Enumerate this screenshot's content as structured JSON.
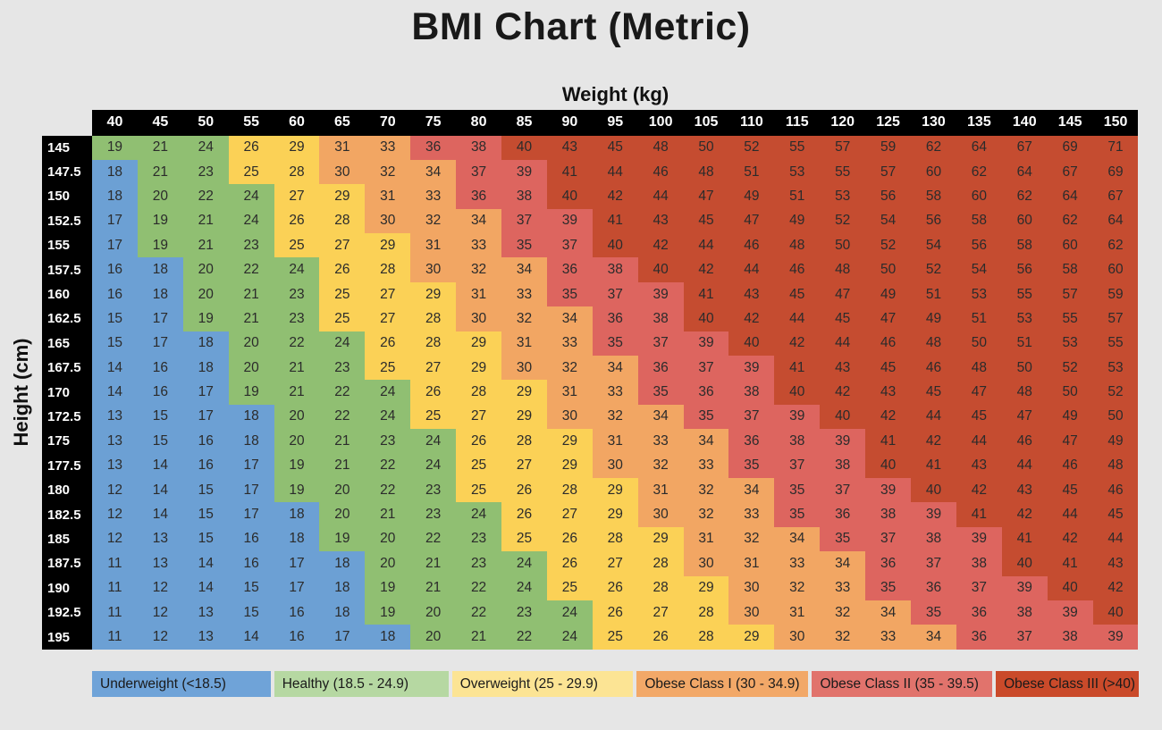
{
  "title": "BMI Chart (Metric)",
  "axes": {
    "x_label": "Weight (kg)",
    "y_label": "Height (cm)"
  },
  "colors": {
    "page_bg": "#e6e6e6",
    "header_bg": "#000000",
    "header_text": "#ffffff",
    "cell_text": "#2b2b2b",
    "title_text": "#191919",
    "axis_text": "#111111"
  },
  "chart_data": {
    "type": "heatmap",
    "title": "BMI Chart (Metric)",
    "xlabel": "Weight (kg)",
    "ylabel": "Height (cm)",
    "weights_kg": [
      40,
      45,
      50,
      55,
      60,
      65,
      70,
      75,
      80,
      85,
      90,
      95,
      100,
      105,
      110,
      115,
      120,
      125,
      130,
      135,
      140,
      145,
      150
    ],
    "heights_cm": [
      "145",
      "147.5",
      "150",
      "152.5",
      "155",
      "157.5",
      "160",
      "162.5",
      "165",
      "167.5",
      "170",
      "172.5",
      "175",
      "177.5",
      "180",
      "182.5",
      "185",
      "187.5",
      "190",
      "192.5",
      "195"
    ],
    "bmi_values": [
      [
        19,
        21,
        24,
        26,
        29,
        31,
        33,
        36,
        38,
        40,
        43,
        45,
        48,
        50,
        52,
        55,
        57,
        59,
        62,
        64,
        67,
        69,
        71
      ],
      [
        18,
        21,
        23,
        25,
        28,
        30,
        32,
        34,
        37,
        39,
        41,
        44,
        46,
        48,
        51,
        53,
        55,
        57,
        60,
        62,
        64,
        67,
        69
      ],
      [
        18,
        20,
        22,
        24,
        27,
        29,
        31,
        33,
        36,
        38,
        40,
        42,
        44,
        47,
        49,
        51,
        53,
        56,
        58,
        60,
        62,
        64,
        67
      ],
      [
        17,
        19,
        21,
        24,
        26,
        28,
        30,
        32,
        34,
        37,
        39,
        41,
        43,
        45,
        47,
        49,
        52,
        54,
        56,
        58,
        60,
        62,
        64
      ],
      [
        17,
        19,
        21,
        23,
        25,
        27,
        29,
        31,
        33,
        35,
        37,
        40,
        42,
        44,
        46,
        48,
        50,
        52,
        54,
        56,
        58,
        60,
        62
      ],
      [
        16,
        18,
        20,
        22,
        24,
        26,
        28,
        30,
        32,
        34,
        36,
        38,
        40,
        42,
        44,
        46,
        48,
        50,
        52,
        54,
        56,
        58,
        60
      ],
      [
        16,
        18,
        20,
        21,
        23,
        25,
        27,
        29,
        31,
        33,
        35,
        37,
        39,
        41,
        43,
        45,
        47,
        49,
        51,
        53,
        55,
        57,
        59
      ],
      [
        15,
        17,
        19,
        21,
        23,
        25,
        27,
        28,
        30,
        32,
        34,
        36,
        38,
        40,
        42,
        44,
        45,
        47,
        49,
        51,
        53,
        55,
        57
      ],
      [
        15,
        17,
        18,
        20,
        22,
        24,
        26,
        28,
        29,
        31,
        33,
        35,
        37,
        39,
        40,
        42,
        44,
        46,
        48,
        50,
        51,
        53,
        55
      ],
      [
        14,
        16,
        18,
        20,
        21,
        23,
        25,
        27,
        29,
        30,
        32,
        34,
        36,
        37,
        39,
        41,
        43,
        45,
        46,
        48,
        50,
        52,
        53
      ],
      [
        14,
        16,
        17,
        19,
        21,
        22,
        24,
        26,
        28,
        29,
        31,
        33,
        35,
        36,
        38,
        40,
        42,
        43,
        45,
        47,
        48,
        50,
        52
      ],
      [
        13,
        15,
        17,
        18,
        20,
        22,
        24,
        25,
        27,
        29,
        30,
        32,
        34,
        35,
        37,
        39,
        40,
        42,
        44,
        45,
        47,
        49,
        50
      ],
      [
        13,
        15,
        16,
        18,
        20,
        21,
        23,
        24,
        26,
        28,
        29,
        31,
        33,
        34,
        36,
        38,
        39,
        41,
        42,
        44,
        46,
        47,
        49
      ],
      [
        13,
        14,
        16,
        17,
        19,
        21,
        22,
        24,
        25,
        27,
        29,
        30,
        32,
        33,
        35,
        37,
        38,
        40,
        41,
        43,
        44,
        46,
        48
      ],
      [
        12,
        14,
        15,
        17,
        19,
        20,
        22,
        23,
        25,
        26,
        28,
        29,
        31,
        32,
        34,
        35,
        37,
        39,
        40,
        42,
        43,
        45,
        46
      ],
      [
        12,
        14,
        15,
        17,
        18,
        20,
        21,
        23,
        24,
        26,
        27,
        29,
        30,
        32,
        33,
        35,
        36,
        38,
        39,
        41,
        42,
        44,
        45
      ],
      [
        12,
        13,
        15,
        16,
        18,
        19,
        20,
        22,
        23,
        25,
        26,
        28,
        29,
        31,
        32,
        34,
        35,
        37,
        38,
        39,
        41,
        42,
        44
      ],
      [
        11,
        13,
        14,
        16,
        17,
        18,
        20,
        21,
        23,
        24,
        26,
        27,
        28,
        30,
        31,
        33,
        34,
        36,
        37,
        38,
        40,
        41,
        43
      ],
      [
        11,
        12,
        14,
        15,
        17,
        18,
        19,
        21,
        22,
        24,
        25,
        26,
        28,
        29,
        30,
        32,
        33,
        35,
        36,
        37,
        39,
        40,
        42
      ],
      [
        11,
        12,
        13,
        15,
        16,
        18,
        19,
        20,
        22,
        23,
        24,
        26,
        27,
        28,
        30,
        31,
        32,
        34,
        35,
        36,
        38,
        39,
        40
      ],
      [
        11,
        12,
        13,
        14,
        16,
        17,
        18,
        20,
        21,
        22,
        24,
        25,
        26,
        28,
        29,
        30,
        32,
        33,
        34,
        36,
        37,
        38,
        39
      ]
    ],
    "categories": [
      {
        "key": "underweight",
        "legend_label": "Underweight (<18.5)",
        "max_bmi": 18,
        "cell_color": "#6CA0D4",
        "legend_color": "#6FA3D8"
      },
      {
        "key": "healthy",
        "legend_label": "Healthy (18.5 - 24.9)",
        "max_bmi": 24,
        "cell_color": "#90BF72",
        "legend_color": "#B6D8A2"
      },
      {
        "key": "overweight",
        "legend_label": "Overweight (25 - 29.9)",
        "max_bmi": 29,
        "cell_color": "#FBD156",
        "legend_color": "#FCE494"
      },
      {
        "key": "obese-1",
        "legend_label": "Obese Class I (30 - 34.9)",
        "max_bmi": 34,
        "cell_color": "#F2A663",
        "legend_color": "#F2A868"
      },
      {
        "key": "obese-2",
        "legend_label": "Obese Class II (35 - 39.5)",
        "max_bmi": 39,
        "cell_color": "#DD655F",
        "legend_color": "#E1736C"
      },
      {
        "key": "obese-3",
        "legend_label": "Obese Class III (>40)",
        "max_bmi": null,
        "cell_color": "#C54C30",
        "legend_color": "#CA4A2A"
      }
    ]
  }
}
